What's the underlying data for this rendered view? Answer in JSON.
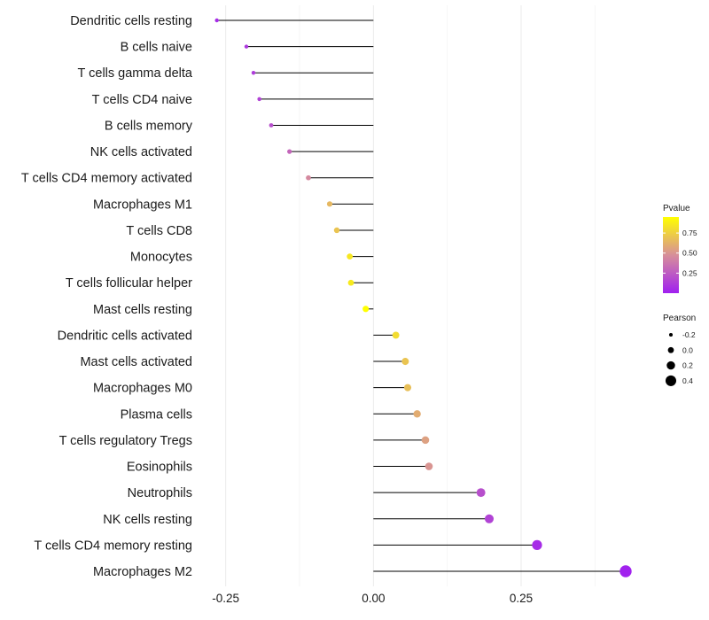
{
  "chart_data": {
    "type": "lollipop",
    "title": "",
    "xlabel": "",
    "ylabel": "",
    "xlim": [
      -0.29,
      0.46
    ],
    "x_ticks": [
      -0.25,
      0.0,
      0.25
    ],
    "x_tick_labels": [
      "-0.25",
      "0.00",
      "0.25"
    ],
    "grid": true,
    "categories": [
      "Dendritic cells resting",
      "B cells naive",
      "T cells gamma delta",
      "T cells CD4 naive",
      "B cells memory",
      "NK cells activated",
      "T cells CD4 memory activated",
      "Macrophages M1",
      "T cells CD8",
      "Monocytes",
      "T cells follicular helper",
      "Mast cells resting",
      "Dendritic cells activated",
      "Mast cells activated",
      "Macrophages M0",
      "Plasma cells",
      "T cells regulatory  Tregs ",
      "Eosinophils",
      "Neutrophils",
      "NK cells resting",
      "T cells CD4 memory resting",
      "Macrophages M2"
    ],
    "values": [
      -0.265,
      -0.215,
      -0.203,
      -0.193,
      -0.173,
      -0.142,
      -0.11,
      -0.074,
      -0.062,
      -0.04,
      -0.038,
      -0.013,
      0.038,
      0.054,
      0.058,
      0.074,
      0.088,
      0.094,
      0.182,
      0.196,
      0.277,
      0.427
    ],
    "pvalues": [
      0.05,
      0.1,
      0.12,
      0.15,
      0.2,
      0.3,
      0.45,
      0.65,
      0.7,
      0.85,
      0.86,
      0.98,
      0.8,
      0.7,
      0.68,
      0.6,
      0.55,
      0.5,
      0.2,
      0.15,
      0.05,
      0.01
    ],
    "legend": {
      "color": {
        "title": "Pvalue",
        "range": [
          0.0,
          0.95
        ],
        "low_color": "#a020f0",
        "mid_color": "#d78f9a",
        "high_color": "#ffff00",
        "ticks": [
          0.25,
          0.5,
          0.75
        ],
        "tick_labels": [
          "0.25",
          "0.50",
          "0.75"
        ]
      },
      "size": {
        "title": "Pearson",
        "values": [
          -0.2,
          0.0,
          0.2,
          0.4
        ],
        "labels": [
          "-0.2",
          "0.0",
          "0.2",
          "0.4"
        ]
      },
      "placement": "right"
    }
  }
}
